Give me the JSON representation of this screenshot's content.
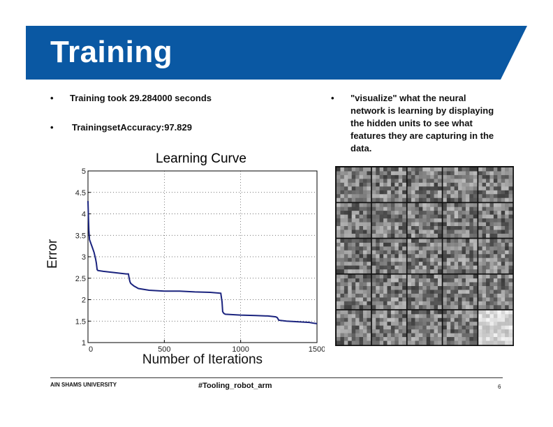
{
  "slide": {
    "title": "Training",
    "bullets": [
      {
        "marker": "•",
        "text": "Training took 29.284000 seconds"
      },
      {
        "marker": "•",
        "text": "TrainingsetAccuracy:97.829"
      },
      {
        "marker": "•",
        "text": "\"visualize\" what the neural network is learning by displaying the hidden units to see what features they are capturing in  the data."
      }
    ],
    "footer": {
      "left": "AIN SHAMS UNIVERSITY",
      "center": "#Tooling_robot_arm",
      "page": "6"
    },
    "colors": {
      "title_bar": "#0a58a3",
      "curve": "#1a237e"
    }
  },
  "chart_data": {
    "type": "line",
    "title": "Learning Curve",
    "xlabel": "Number of Iterations",
    "ylabel": "Error",
    "xlim": [
      0,
      1500
    ],
    "ylim": [
      1,
      5
    ],
    "xticks": [
      0,
      500,
      1000,
      1500
    ],
    "yticks": [
      1,
      1.5,
      2,
      2.5,
      3,
      3.5,
      4,
      4.5,
      5
    ],
    "grid": true,
    "series": [
      {
        "x": [
          0,
          3,
          6,
          10,
          15,
          20,
          25,
          30,
          40,
          50,
          55,
          60,
          65,
          100,
          150,
          200,
          250,
          265,
          270,
          275,
          280,
          300,
          330,
          400,
          500,
          600,
          700,
          800,
          870,
          878,
          882,
          890,
          900,
          950,
          1000,
          1100,
          1180,
          1230,
          1240,
          1250,
          1300,
          1400,
          1450,
          1480,
          1500
        ],
        "values": [
          4.3,
          3.9,
          3.6,
          3.4,
          3.35,
          3.3,
          3.25,
          3.2,
          3.1,
          2.95,
          2.85,
          2.7,
          2.68,
          2.66,
          2.64,
          2.62,
          2.6,
          2.6,
          2.5,
          2.42,
          2.38,
          2.32,
          2.26,
          2.22,
          2.2,
          2.2,
          2.18,
          2.17,
          2.15,
          1.95,
          1.72,
          1.68,
          1.66,
          1.65,
          1.64,
          1.63,
          1.62,
          1.6,
          1.58,
          1.52,
          1.5,
          1.48,
          1.47,
          1.45,
          1.44
        ]
      }
    ]
  },
  "hidden_units": {
    "rows": 5,
    "cols": 5,
    "label": "hidden units visualization"
  }
}
